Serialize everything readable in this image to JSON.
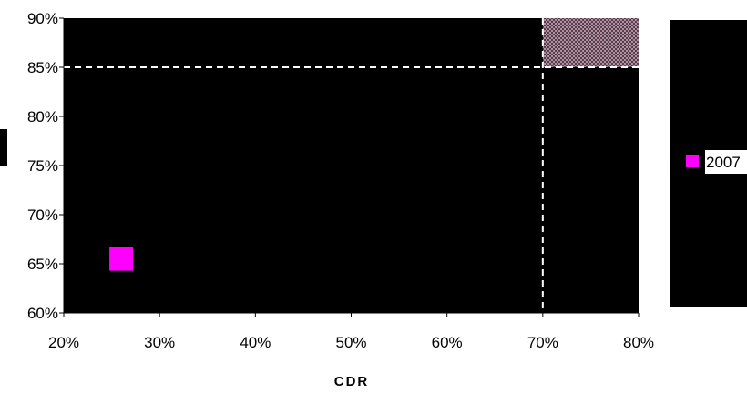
{
  "chart_data": {
    "type": "scatter",
    "xlabel": "CDR",
    "ylabel": "",
    "xlim": [
      0.2,
      0.8
    ],
    "ylim": [
      0.6,
      0.9
    ],
    "x_ticks": [
      "20%",
      "30%",
      "40%",
      "50%",
      "60%",
      "70%",
      "80%"
    ],
    "y_ticks": [
      "60%",
      "65%",
      "70%",
      "75%",
      "80%",
      "85%",
      "90%"
    ],
    "x_tick_values": [
      0.2,
      0.3,
      0.4,
      0.5,
      0.6,
      0.7,
      0.8
    ],
    "y_tick_values": [
      0.6,
      0.65,
      0.7,
      0.75,
      0.8,
      0.85,
      0.9
    ],
    "grid": false,
    "plot_background": "#000000",
    "reference_lines": {
      "x": 0.7,
      "y": 0.85,
      "style": "dashed",
      "color": "#ffffff"
    },
    "target_region": {
      "x": [
        0.7,
        0.8
      ],
      "y": [
        0.85,
        0.9
      ],
      "pattern": "crosshatch",
      "color": "#c0a0b0"
    },
    "series": [
      {
        "name": "2007",
        "marker": "square",
        "color": "#ff00ff",
        "points": [
          {
            "x": 0.26,
            "y": 0.655
          }
        ]
      }
    ],
    "legend": {
      "position": "right"
    }
  }
}
